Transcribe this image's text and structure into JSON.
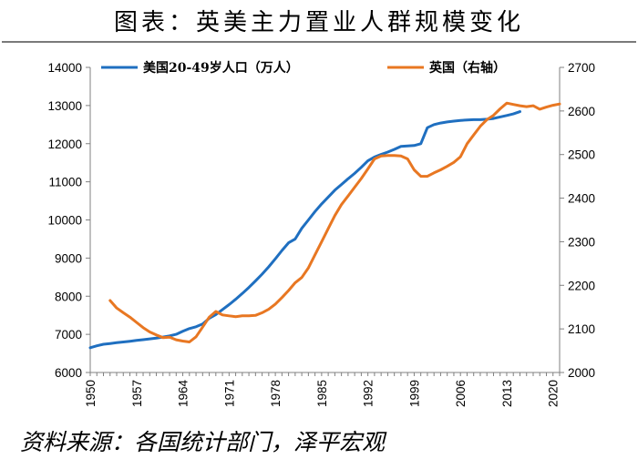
{
  "title": "图表：英美主力置业人群规模变化",
  "source": "资料来源：各国统计部门，泽平宏观",
  "colors": {
    "us": "#1f6fc0",
    "uk": "#e87722",
    "axis": "#808080",
    "text": "#000000"
  },
  "chart_data": {
    "type": "line",
    "title": "图表：英美主力置业人群规模变化",
    "x_ticks": [
      1950,
      1957,
      1964,
      1971,
      1978,
      1985,
      1992,
      1999,
      2006,
      2013,
      2020
    ],
    "xlim": [
      1950,
      2021
    ],
    "ylim": [
      6000,
      14000
    ],
    "y_ticks": [
      6000,
      7000,
      8000,
      9000,
      10000,
      11000,
      12000,
      13000,
      14000
    ],
    "y2lim": [
      2000,
      2700
    ],
    "y2_ticks": [
      2000,
      2100,
      2200,
      2300,
      2400,
      2500,
      2600,
      2700
    ],
    "grid": false,
    "legend": "top",
    "series": [
      {
        "name": "美国20-49岁人口（万人）",
        "axis": "left",
        "color": "#1f6fc0",
        "x": [
          1950,
          1951,
          1952,
          1953,
          1954,
          1955,
          1956,
          1957,
          1958,
          1959,
          1960,
          1961,
          1962,
          1963,
          1964,
          1965,
          1966,
          1967,
          1968,
          1969,
          1970,
          1971,
          1972,
          1973,
          1974,
          1975,
          1976,
          1977,
          1978,
          1979,
          1980,
          1981,
          1982,
          1983,
          1984,
          1985,
          1986,
          1987,
          1988,
          1989,
          1990,
          1991,
          1992,
          1993,
          1994,
          1995,
          1996,
          1997,
          1998,
          1999,
          2000,
          2001,
          2002,
          2003,
          2004,
          2005,
          2006,
          2007,
          2008,
          2009,
          2010,
          2011,
          2012,
          2013,
          2014,
          2015
        ],
        "values": [
          6650,
          6700,
          6740,
          6760,
          6780,
          6800,
          6820,
          6840,
          6860,
          6880,
          6900,
          6930,
          6960,
          7000,
          7080,
          7150,
          7200,
          7270,
          7420,
          7520,
          7650,
          7780,
          7920,
          8070,
          8230,
          8400,
          8580,
          8770,
          8980,
          9200,
          9400,
          9500,
          9780,
          10000,
          10220,
          10420,
          10600,
          10780,
          10930,
          11080,
          11220,
          11380,
          11550,
          11650,
          11720,
          11780,
          11850,
          11930,
          11940,
          11950,
          12000,
          12420,
          12500,
          12540,
          12570,
          12590,
          12610,
          12620,
          12630,
          12630,
          12640,
          12660,
          12700,
          12740,
          12780,
          12840
        ]
      },
      {
        "name": "英国（右轴）",
        "axis": "right",
        "color": "#e87722",
        "x": [
          1953,
          1954,
          1955,
          1956,
          1957,
          1958,
          1959,
          1960,
          1961,
          1962,
          1963,
          1964,
          1965,
          1966,
          1967,
          1968,
          1969,
          1970,
          1971,
          1972,
          1973,
          1974,
          1975,
          1976,
          1977,
          1978,
          1979,
          1980,
          1981,
          1982,
          1983,
          1984,
          1985,
          1986,
          1987,
          1988,
          1989,
          1990,
          1991,
          1992,
          1993,
          1994,
          1995,
          1996,
          1997,
          1998,
          1999,
          2000,
          2001,
          2002,
          2003,
          2004,
          2005,
          2006,
          2007,
          2008,
          2009,
          2010,
          2011,
          2012,
          2013,
          2014,
          2015,
          2016,
          2017,
          2018,
          2019,
          2020,
          2021
        ],
        "values": [
          2165,
          2148,
          2137,
          2127,
          2115,
          2103,
          2093,
          2086,
          2080,
          2081,
          2075,
          2072,
          2070,
          2082,
          2104,
          2127,
          2140,
          2132,
          2130,
          2128,
          2130,
          2130,
          2131,
          2137,
          2145,
          2157,
          2172,
          2188,
          2206,
          2218,
          2240,
          2270,
          2300,
          2330,
          2360,
          2385,
          2405,
          2425,
          2445,
          2467,
          2490,
          2497,
          2498,
          2498,
          2497,
          2490,
          2465,
          2450,
          2450,
          2458,
          2465,
          2473,
          2482,
          2495,
          2525,
          2545,
          2565,
          2580,
          2590,
          2605,
          2618,
          2615,
          2612,
          2610,
          2612,
          2604,
          2609,
          2613,
          2616
        ]
      }
    ]
  }
}
